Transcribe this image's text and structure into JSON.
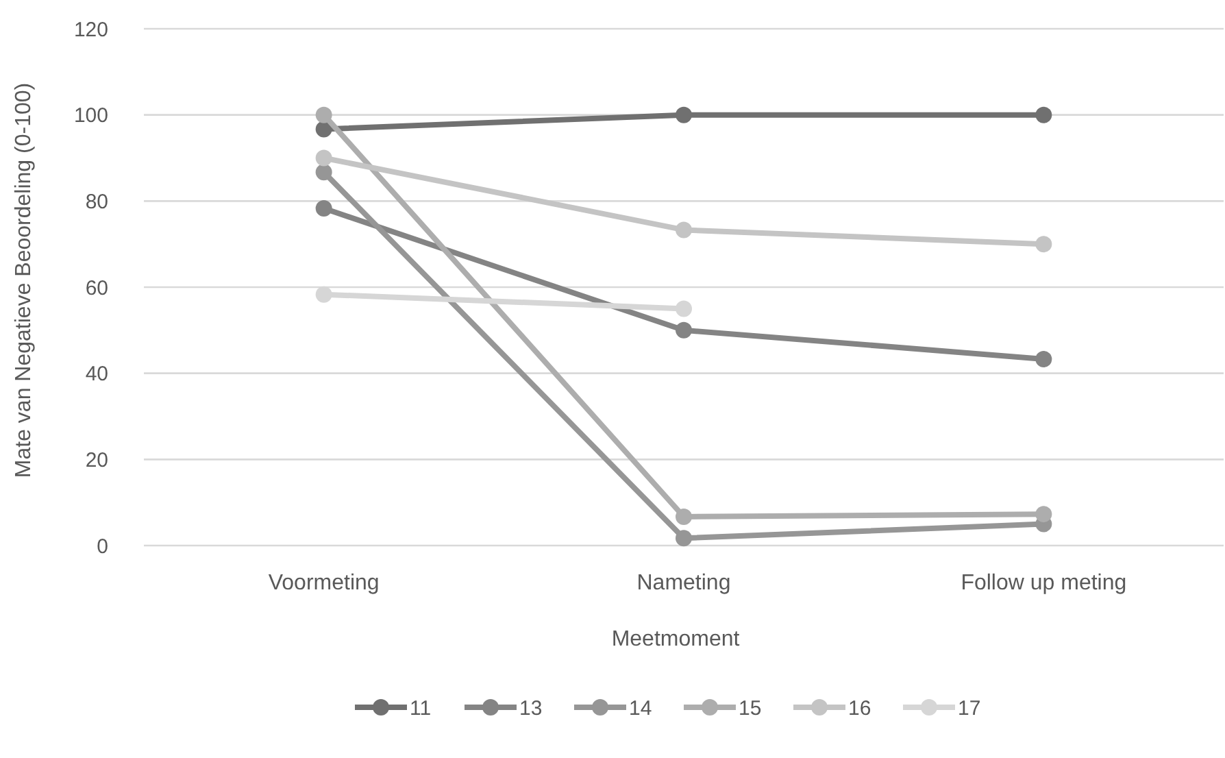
{
  "chart_data": {
    "type": "line",
    "xlabel": "Meetmoment",
    "ylabel": "Mate van Negatieve Beoordeling (0-100)",
    "categories": [
      "Voormeting",
      "Nameting",
      "Follow up meting"
    ],
    "ylim": [
      0,
      120
    ],
    "yticks": [
      0,
      20,
      40,
      60,
      80,
      100,
      120
    ],
    "grid": "y",
    "legend": "bottom",
    "marker": "circle",
    "line_style": "solid",
    "series": [
      {
        "name": "11",
        "color": "#707070",
        "values": [
          96.7,
          100,
          100
        ]
      },
      {
        "name": "13",
        "color": "#848484",
        "values": [
          78.3,
          50,
          43.3
        ]
      },
      {
        "name": "14",
        "color": "#969696",
        "values": [
          86.7,
          1.7,
          5
        ]
      },
      {
        "name": "15",
        "color": "#adadad",
        "values": [
          100,
          6.7,
          7.3
        ]
      },
      {
        "name": "16",
        "color": "#c4c4c4",
        "values": [
          90,
          73.3,
          70
        ]
      },
      {
        "name": "17",
        "color": "#d6d6d6",
        "values": [
          58.3,
          55,
          null
        ]
      }
    ]
  }
}
